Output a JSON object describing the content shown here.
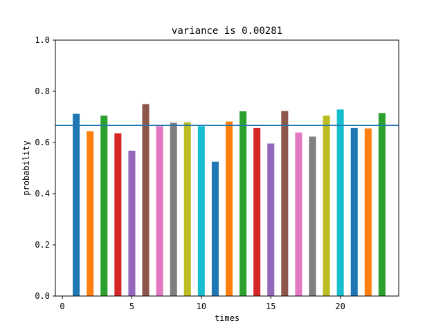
{
  "chart_data": {
    "type": "bar",
    "title": "variance is 0.00281",
    "xlabel": "times",
    "ylabel": "probability",
    "xlim": [
      -0.5,
      24.2
    ],
    "ylim": [
      0.0,
      1.0
    ],
    "x_ticks": [
      0,
      5,
      10,
      15,
      20
    ],
    "y_ticks": [
      0.0,
      0.2,
      0.4,
      0.6,
      0.8,
      1.0
    ],
    "x_tick_labels": [
      "0",
      "5",
      "10",
      "15",
      "20"
    ],
    "y_tick_labels": [
      "0.0",
      "0.2",
      "0.4",
      "0.6",
      "0.8",
      "1.0"
    ],
    "bar_width": 0.5,
    "reference_line": {
      "y": 0.667,
      "color": "#1f77b4"
    },
    "x": [
      1,
      2,
      3,
      4,
      5,
      6,
      7,
      8,
      9,
      10,
      11,
      12,
      13,
      14,
      15,
      16,
      17,
      18,
      19,
      20,
      21,
      22,
      23
    ],
    "values": [
      0.712,
      0.644,
      0.705,
      0.636,
      0.568,
      0.75,
      0.664,
      0.677,
      0.679,
      0.664,
      0.525,
      0.682,
      0.722,
      0.657,
      0.596,
      0.723,
      0.639,
      0.623,
      0.705,
      0.729,
      0.657,
      0.655,
      0.715
    ],
    "colors": [
      "#1f77b4",
      "#ff7f0e",
      "#2ca02c",
      "#d62728",
      "#9467bd",
      "#8c564b",
      "#e377c2",
      "#7f7f7f",
      "#bcbd22",
      "#17becf",
      "#1f77b4",
      "#ff7f0e",
      "#2ca02c",
      "#d62728",
      "#9467bd",
      "#8c564b",
      "#e377c2",
      "#7f7f7f",
      "#bcbd22",
      "#17becf",
      "#1f77b4",
      "#ff7f0e",
      "#2ca02c"
    ]
  }
}
